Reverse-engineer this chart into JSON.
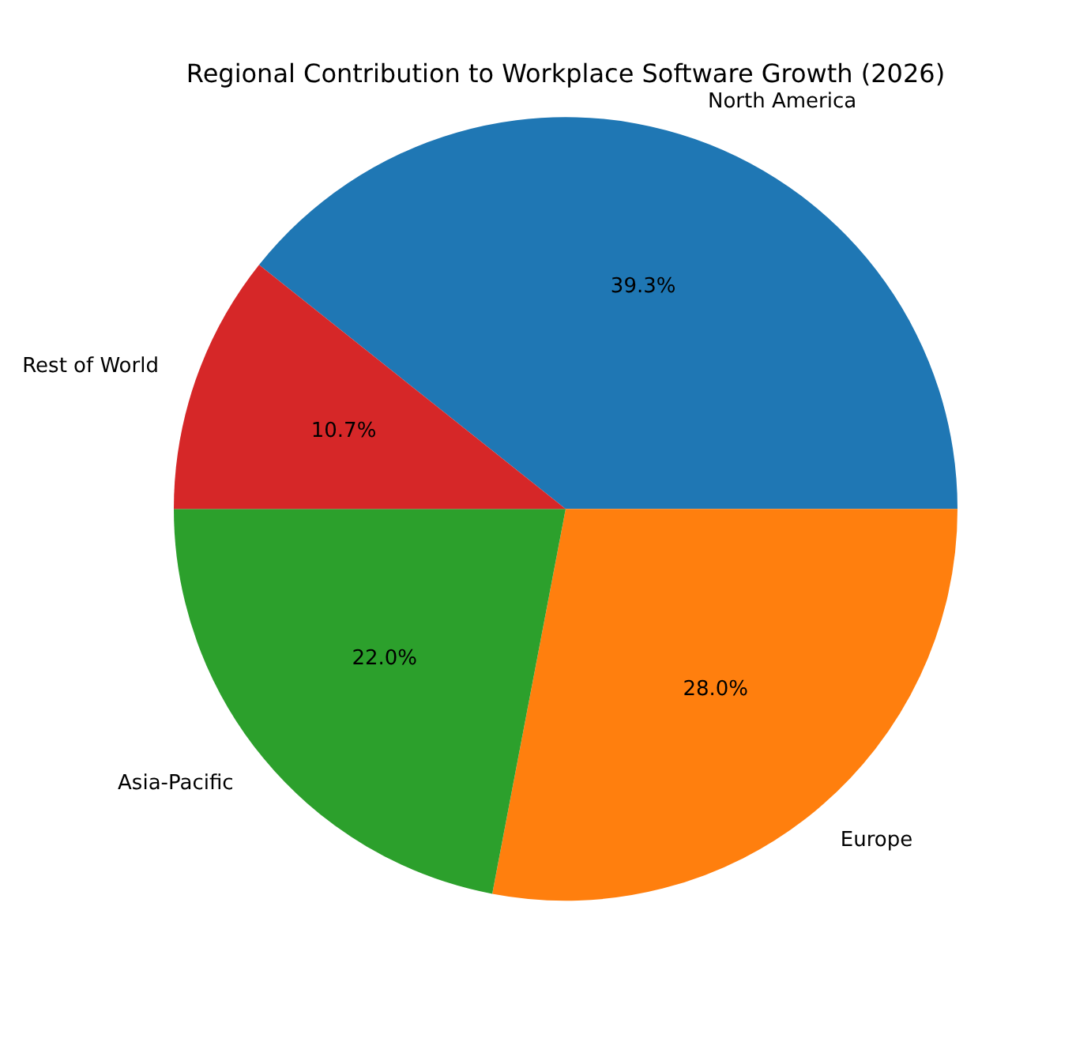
{
  "chart_data": {
    "type": "pie",
    "title": "Regional Contribution to Workplace Software Growth (2026)",
    "categories": [
      "North America",
      "Europe",
      "Asia-Pacific",
      "Rest of World"
    ],
    "values": [
      39.3,
      28.0,
      22.0,
      10.7
    ],
    "colors": [
      "#1f77b4",
      "#ff7f0e",
      "#2ca02c",
      "#d62728"
    ],
    "value_labels": [
      "39.3%",
      "28.0%",
      "22.0%",
      "10.7%"
    ],
    "legend": false
  }
}
